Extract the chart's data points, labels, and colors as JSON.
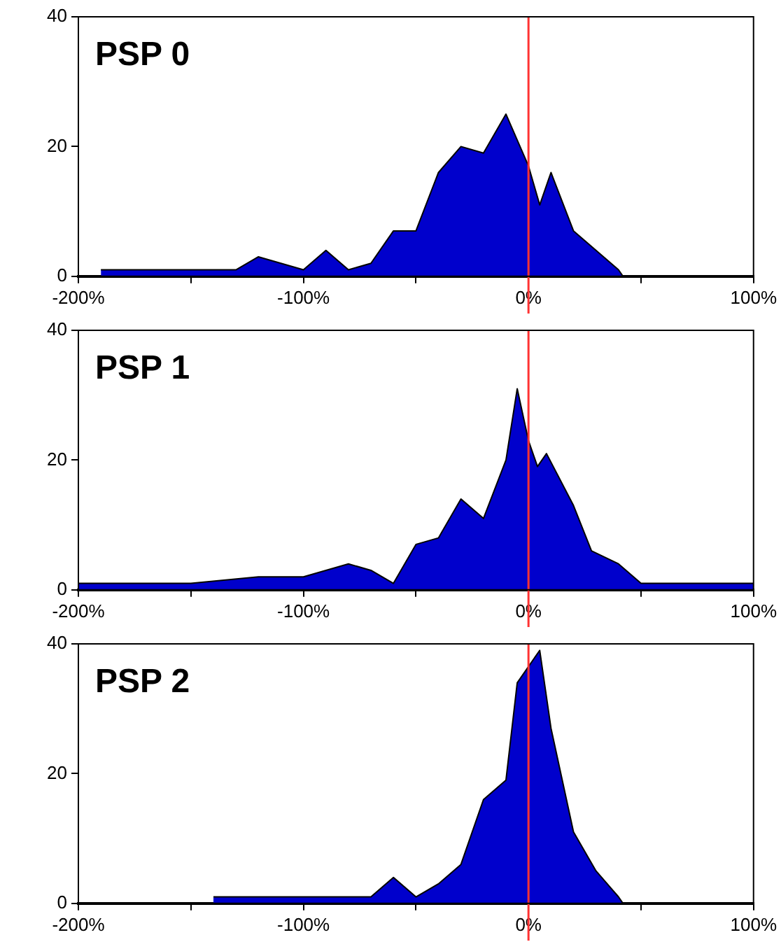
{
  "chart_data": [
    {
      "type": "area",
      "title": "PSP 0",
      "x": [
        -190,
        -130,
        -120,
        -110,
        -100,
        -90,
        -80,
        -70,
        -60,
        -50,
        -40,
        -30,
        -20,
        -10,
        -5,
        0,
        5,
        10,
        20,
        30,
        40,
        42,
        100
      ],
      "series": [
        {
          "color": "#0000cc",
          "values": [
            1,
            1,
            3,
            2,
            1,
            4,
            1,
            2,
            7,
            7,
            16,
            20,
            19,
            25,
            21,
            17,
            11,
            16,
            7,
            4,
            1,
            0,
            0
          ]
        }
      ],
      "xlim": [
        -200,
        100
      ],
      "xticks": [
        {
          "value": -200,
          "label": "-200%"
        },
        {
          "value": -150,
          "label": null
        },
        {
          "value": -100,
          "label": "-100%"
        },
        {
          "value": -50,
          "label": null
        },
        {
          "value": 0,
          "label": "0%"
        },
        {
          "value": 50,
          "label": null
        },
        {
          "value": 100,
          "label": "100%"
        }
      ],
      "ylim": [
        0,
        40
      ],
      "yticks": [
        0,
        20,
        40
      ],
      "ref_lines": [
        {
          "axis": "x",
          "value": 0,
          "color": "#ff3333"
        }
      ]
    },
    {
      "type": "area",
      "title": "PSP 1",
      "x": [
        -200,
        -150,
        -120,
        -100,
        -80,
        -70,
        -60,
        -50,
        -40,
        -30,
        -20,
        -10,
        -5,
        0,
        4,
        8,
        20,
        28,
        40,
        50,
        100
      ],
      "series": [
        {
          "color": "#0000cc",
          "values": [
            1,
            1,
            2,
            2,
            4,
            3,
            1,
            7,
            8,
            14,
            11,
            20,
            31,
            23,
            19,
            21,
            13,
            6,
            4,
            1,
            1
          ]
        }
      ],
      "xlim": [
        -200,
        100
      ],
      "xticks": [
        {
          "value": -200,
          "label": "-200%"
        },
        {
          "value": -150,
          "label": null
        },
        {
          "value": -100,
          "label": "-100%"
        },
        {
          "value": -50,
          "label": null
        },
        {
          "value": 0,
          "label": "0%"
        },
        {
          "value": 50,
          "label": null
        },
        {
          "value": 100,
          "label": "100%"
        }
      ],
      "ylim": [
        0,
        40
      ],
      "yticks": [
        0,
        20,
        40
      ],
      "ref_lines": [
        {
          "axis": "x",
          "value": 0,
          "color": "#ff3333"
        }
      ]
    },
    {
      "type": "area",
      "title": "PSP 2",
      "x": [
        -140,
        -70,
        -60,
        -50,
        -40,
        -30,
        -20,
        -10,
        -5,
        5,
        10,
        20,
        30,
        40,
        42,
        100
      ],
      "series": [
        {
          "color": "#0000cc",
          "values": [
            1,
            1,
            4,
            1,
            3,
            6,
            16,
            19,
            34,
            39,
            27,
            11,
            5,
            1,
            0,
            0
          ]
        }
      ],
      "xlim": [
        -200,
        100
      ],
      "xticks": [
        {
          "value": -200,
          "label": "-200%"
        },
        {
          "value": -150,
          "label": null
        },
        {
          "value": -100,
          "label": "-100%"
        },
        {
          "value": -50,
          "label": null
        },
        {
          "value": 0,
          "label": "0%"
        },
        {
          "value": 50,
          "label": null
        },
        {
          "value": 100,
          "label": "100%"
        }
      ],
      "ylim": [
        0,
        40
      ],
      "yticks": [
        0,
        20,
        40
      ],
      "ref_lines": [
        {
          "axis": "x",
          "value": 0,
          "color": "#ff3333"
        }
      ]
    }
  ]
}
